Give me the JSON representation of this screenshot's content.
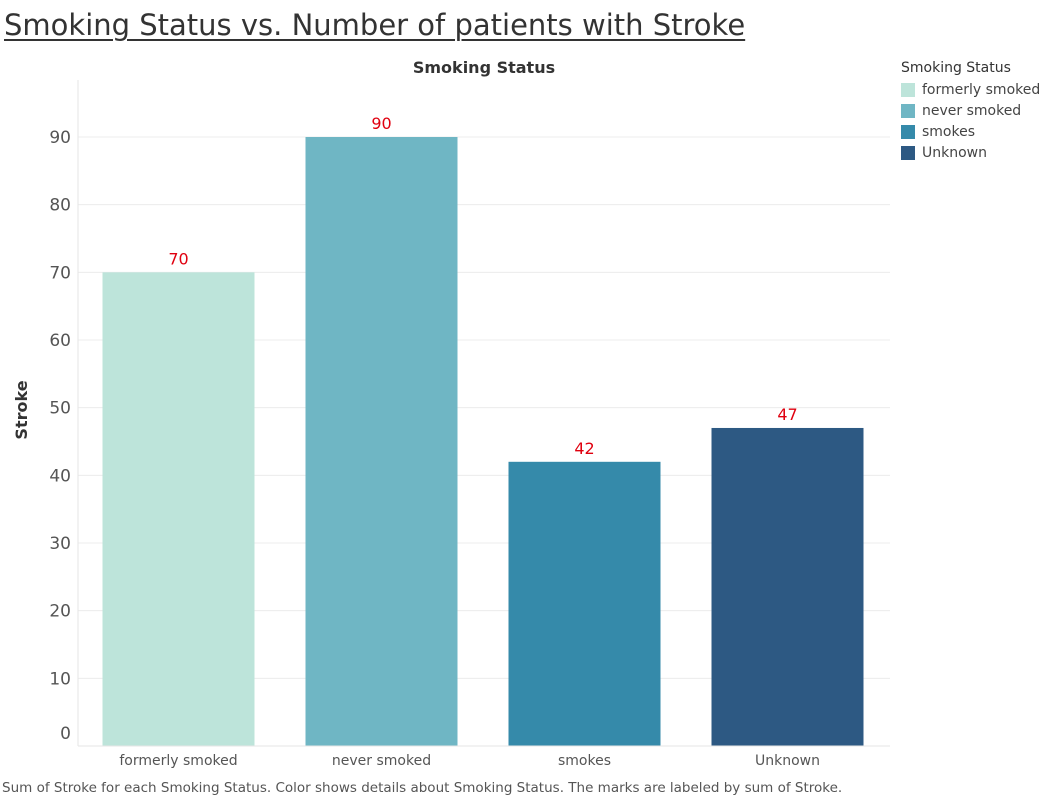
{
  "title": "Smoking Status vs. Number of patients with Stroke",
  "footer": "Sum of Stroke for each Smoking Status.  Color shows details about Smoking Status.  The marks are labeled by sum of Stroke.",
  "legend": {
    "title": "Smoking Status",
    "items": [
      {
        "label": "formerly smoked",
        "color": "#bde4da"
      },
      {
        "label": "never smoked",
        "color": "#6fb6c4"
      },
      {
        "label": "smokes",
        "color": "#358aaa"
      },
      {
        "label": "Unknown",
        "color": "#2d5983"
      }
    ]
  },
  "chart_data": {
    "type": "bar",
    "title": "Smoking Status",
    "xlabel": "",
    "ylabel": "Stroke",
    "categories": [
      "formerly smoked",
      "never smoked",
      "smokes",
      "Unknown"
    ],
    "values": [
      70,
      90,
      42,
      47
    ],
    "colors": [
      "#bde4da",
      "#6fb6c4",
      "#358aaa",
      "#2d5983"
    ],
    "label_color": "#e0000f",
    "yticks": [
      0,
      10,
      20,
      30,
      40,
      50,
      60,
      70,
      80,
      90
    ],
    "ylim": [
      0,
      90
    ],
    "grid": true,
    "legend_position": "right"
  }
}
